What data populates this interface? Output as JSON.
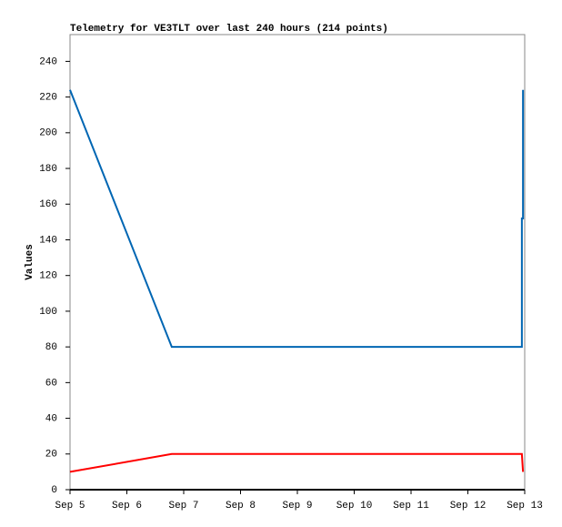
{
  "chart_data": {
    "type": "line",
    "title": "Telemetry for VE3TLT over last 240 hours (214 points)",
    "y_label": "Values",
    "x": [
      0,
      1.79,
      7.95,
      7.95,
      7.97,
      7.97
    ],
    "series": [
      {
        "color": "#0066b3",
        "values": [
          224,
          80,
          80,
          152,
          152,
          224
        ]
      },
      {
        "color": "#ff0000",
        "values": [
          10,
          20,
          20,
          20,
          10,
          10
        ]
      }
    ],
    "xlim": [
      0,
      8
    ],
    "xticks": [
      {
        "value": 0,
        "label": "Sep 5"
      },
      {
        "value": 1,
        "label": "Sep 6"
      },
      {
        "value": 2,
        "label": "Sep 7"
      },
      {
        "value": 3,
        "label": "Sep 8"
      },
      {
        "value": 4,
        "label": "Sep 9"
      },
      {
        "value": 5,
        "label": "Sep 10"
      },
      {
        "value": 6,
        "label": "Sep 11"
      },
      {
        "value": 7,
        "label": "Sep 12"
      },
      {
        "value": 8,
        "label": "Sep 13"
      }
    ],
    "ylim": [
      0,
      255
    ],
    "yticks": [
      0,
      20,
      40,
      60,
      80,
      100,
      120,
      140,
      160,
      180,
      200,
      220,
      240
    ]
  }
}
